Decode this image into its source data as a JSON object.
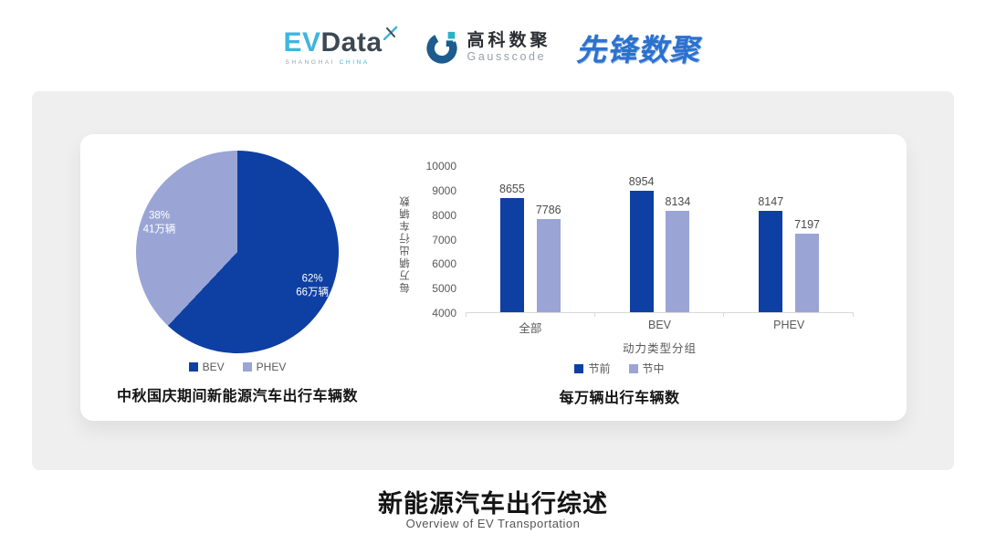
{
  "header": {
    "logos": {
      "evdata": {
        "part1": "EV",
        "part2": "Data",
        "sub1": "SHANGHAI",
        "sub2": "CHINA"
      },
      "gausscode": {
        "cn": "高科数聚",
        "en": "Gausscode"
      },
      "xianfeng": {
        "text": "先锋数聚"
      }
    }
  },
  "colors": {
    "series_dark_blue": "#0e3fa3",
    "series_light_purple": "#9aa5d6",
    "panel_gray": "#efefef",
    "evdata_cyan": "#3fb6dc",
    "evdata_dark": "#3d4852",
    "gausscode_blue": "#1d5c8e",
    "gausscode_teal": "#27b3c8",
    "xianfeng_blue": "#2b72cf"
  },
  "chart_data": [
    {
      "type": "pie",
      "title": "中秋国庆期间新能源汽车出行车辆数",
      "start_angle": "top",
      "direction": "clockwise",
      "slices": [
        {
          "label": "BEV",
          "percent": 62,
          "value_label": "66万辆",
          "color": "#0e3fa3"
        },
        {
          "label": "PHEV",
          "percent": 38,
          "value_label": "41万辆",
          "color": "#9aa5d6"
        }
      ],
      "legend": [
        "BEV",
        "PHEV"
      ],
      "legend_position": "bottom"
    },
    {
      "type": "bar",
      "title": "每万辆出行车辆数",
      "categories": [
        "全部",
        "BEV",
        "PHEV"
      ],
      "series": [
        {
          "name": "节前",
          "color": "#0e3fa3",
          "values": [
            8655,
            8954,
            8147
          ]
        },
        {
          "name": "节中",
          "color": "#9aa5d6",
          "values": [
            7786,
            8134,
            7197
          ]
        }
      ],
      "xlabel": "动力类型分组",
      "ylabel": "每万辆出行车辆数",
      "ylim": [
        4000,
        10000
      ],
      "ytick_step": 1000,
      "grid": false,
      "legend_position": "bottom"
    }
  ],
  "footer": {
    "title": "新能源汽车出行综述",
    "subtitle": "Overview of EV Transportation"
  }
}
